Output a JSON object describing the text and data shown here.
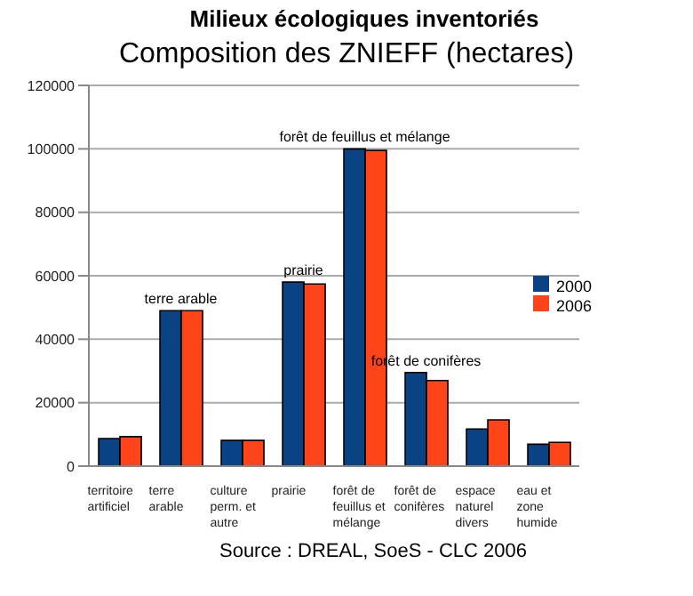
{
  "chart_data": {
    "type": "bar",
    "title": "Milieux écologiques inventoriés",
    "subtitle": "Composition des ZNIEFF (hectares)",
    "categories": [
      "territoire\nartificiel",
      "terre\narable",
      "culture\nperm. et\nautre",
      "prairie",
      "forêt de\nfeuillus et\nmélange",
      "forêt de\nconifères",
      "espace\nnaturel\ndivers",
      "eau et\nzone\nhumide"
    ],
    "series": [
      {
        "name": "2000",
        "color": "#0a4384",
        "values": [
          8700,
          49000,
          8100,
          58000,
          100000,
          29500,
          11700,
          6900
        ]
      },
      {
        "name": "2006",
        "color": "#ff4419",
        "values": [
          9300,
          49000,
          8100,
          57400,
          99500,
          27000,
          14600,
          7500
        ]
      }
    ],
    "ylim": [
      0,
      120000
    ],
    "yticks": [
      0,
      20000,
      40000,
      60000,
      80000,
      100000,
      120000
    ],
    "grid": "y",
    "legend": "right",
    "annotations": [
      {
        "text": "terre arable",
        "x": "terre\narable",
        "y": 49000
      },
      {
        "text": "prairie",
        "x": "prairie",
        "y": 58000
      },
      {
        "text": "forêt de feuillus et mélange",
        "x": "forêt de\nfeuillus et\nmélange",
        "y": 100000
      },
      {
        "text": "forêt de conifères",
        "x": "forêt de\nconifères",
        "y": 29500
      },
      "Source : DREAL, SoeS - CLC 2006"
    ]
  }
}
